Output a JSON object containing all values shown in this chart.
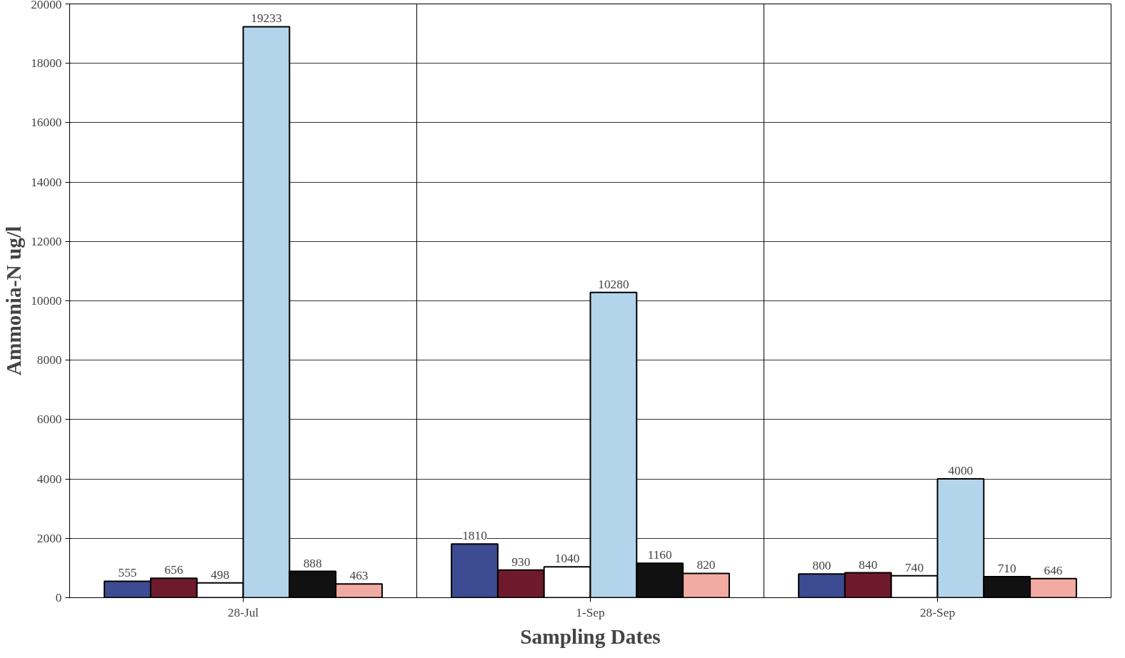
{
  "chart_data": {
    "type": "bar",
    "xlabel": "Sampling Dates",
    "ylabel": "Ammonia-N ug/l",
    "categories": [
      "28-Jul",
      "1-Sep",
      "28-Sep"
    ],
    "series": [
      {
        "color": "#3d4b92",
        "values": [
          555,
          1810,
          800
        ]
      },
      {
        "color": "#6e1a2c",
        "values": [
          656,
          930,
          840
        ]
      },
      {
        "color": "#ffffff",
        "values": [
          498,
          1040,
          740
        ]
      },
      {
        "color": "#b3d5ec",
        "values": [
          19233,
          10280,
          4000
        ]
      },
      {
        "color": "#111111",
        "values": [
          888,
          1160,
          710
        ]
      },
      {
        "color": "#f2aba3",
        "values": [
          463,
          820,
          646
        ]
      }
    ],
    "ylim": [
      0,
      20000
    ],
    "yticks": [
      0,
      2000,
      4000,
      6000,
      8000,
      10000,
      12000,
      14000,
      16000,
      18000,
      20000
    ],
    "grid": true,
    "data_labels": true
  }
}
